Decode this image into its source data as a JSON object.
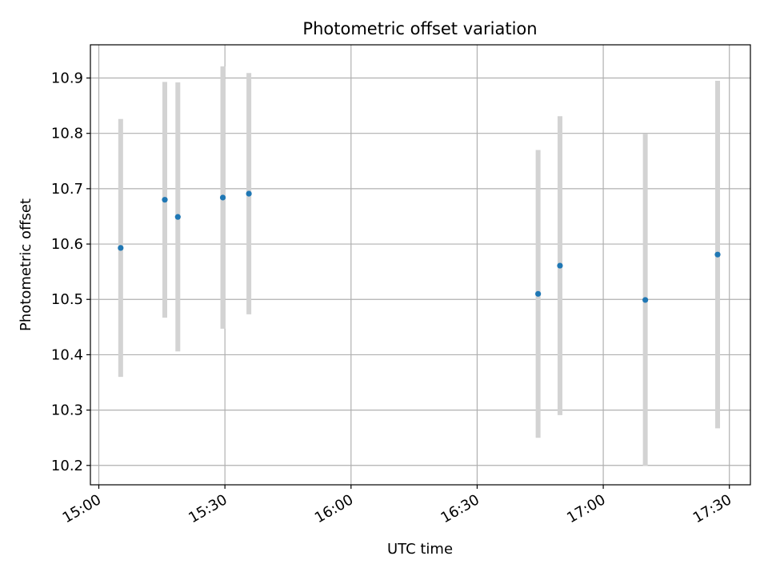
{
  "chart_data": {
    "type": "scatter",
    "title": "Photometric offset variation",
    "xlabel": "UTC time",
    "ylabel": "Photometric offset",
    "x_ticks": [
      "15:00",
      "15:30",
      "16:00",
      "16:30",
      "17:00",
      "17:30"
    ],
    "x_tick_minutes": [
      0,
      30,
      60,
      90,
      120,
      150
    ],
    "xlim_minutes": [
      -2,
      155
    ],
    "y_ticks": [
      10.2,
      10.3,
      10.4,
      10.5,
      10.6,
      10.7,
      10.8,
      10.9
    ],
    "ylim": [
      10.165,
      10.96
    ],
    "grid": true,
    "points": [
      {
        "time": "15:05",
        "minutes": 5.2,
        "y": 10.593,
        "err": 0.233
      },
      {
        "time": "15:15",
        "minutes": 15.7,
        "y": 10.68,
        "err": 0.213
      },
      {
        "time": "15:18",
        "minutes": 18.8,
        "y": 10.649,
        "err": 0.243
      },
      {
        "time": "15:29",
        "minutes": 29.5,
        "y": 10.684,
        "err": 0.237
      },
      {
        "time": "15:35",
        "minutes": 35.7,
        "y": 10.691,
        "err": 0.218
      },
      {
        "time": "16:45",
        "minutes": 104.5,
        "y": 10.51,
        "err": 0.26
      },
      {
        "time": "16:49",
        "minutes": 109.7,
        "y": 10.561,
        "err": 0.27
      },
      {
        "time": "17:10",
        "minutes": 130.0,
        "y": 10.499,
        "err": 0.3
      },
      {
        "time": "17:27",
        "minutes": 147.2,
        "y": 10.581,
        "err": 0.314
      }
    ],
    "colors": {
      "marker": "#1f77b4",
      "errorbar": "#d3d3d3",
      "grid": "#b0b0b0"
    }
  }
}
